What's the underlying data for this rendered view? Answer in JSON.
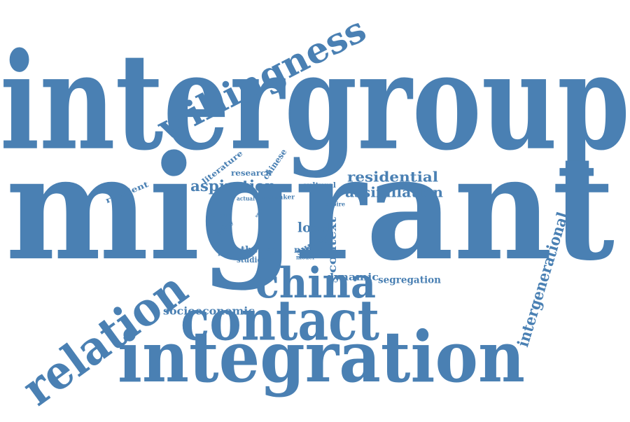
{
  "word_cloud": {
    "color": "#4a80b3",
    "background": "#ffffff",
    "words": [
      {
        "id": "intergroup",
        "text": "intergroup",
        "orientation": "horizontal"
      },
      {
        "id": "migrant",
        "text": "migrant",
        "orientation": "horizontal"
      },
      {
        "id": "integration",
        "text": "integration",
        "orientation": "horizontal"
      },
      {
        "id": "contact",
        "text": "contact",
        "orientation": "horizontal"
      },
      {
        "id": "china",
        "text": "china",
        "orientation": "horizontal"
      },
      {
        "id": "relation",
        "text": "relation",
        "orientation": "angled"
      },
      {
        "id": "willingness",
        "text": "willingness",
        "orientation": "angled"
      },
      {
        "id": "intergenerational",
        "text": "intergenerational",
        "orientation": "angled"
      },
      {
        "id": "residential",
        "text": "residential",
        "orientation": "horizontal"
      },
      {
        "id": "assimilation",
        "text": "assimilation",
        "orientation": "horizontal"
      },
      {
        "id": "aspiration",
        "text": "aspiration",
        "orientation": "horizontal"
      },
      {
        "id": "socioeconomic",
        "text": "socioeconomic",
        "orientation": "horizontal"
      },
      {
        "id": "segregation",
        "text": "segregation",
        "orientation": "horizontal"
      },
      {
        "id": "dynamic",
        "text": "dynamic",
        "orientation": "horizontal"
      },
      {
        "id": "local",
        "text": "local",
        "orientation": "horizontal"
      },
      {
        "id": "context",
        "text": "context",
        "orientation": "vertical"
      },
      {
        "id": "urban",
        "text": "urban",
        "orientation": "vertical"
      },
      {
        "id": "chinese",
        "text": "chinese",
        "orientation": "angled"
      },
      {
        "id": "literature",
        "text": "literature",
        "orientation": "angled"
      },
      {
        "id": "resident",
        "text": "resident",
        "orientation": "angled"
      },
      {
        "id": "contribute",
        "text": "contribute",
        "orientation": "vertical"
      },
      {
        "id": "research",
        "text": "research",
        "orientation": "horizontal"
      },
      {
        "id": "cultural",
        "text": "cultural",
        "orientation": "horizontal"
      },
      {
        "id": "survey",
        "text": "survey",
        "orientation": "angled"
      },
      {
        "id": "native",
        "text": "native",
        "orientation": "horizontal"
      },
      {
        "id": "theory",
        "text": "theory",
        "orientation": "horizontal"
      },
      {
        "id": "studies",
        "text": "studies",
        "orientation": "horizontal"
      },
      {
        "id": "finding",
        "text": "finding",
        "orientation": "horizontal"
      },
      {
        "id": "model",
        "text": "model",
        "orientation": "horizontal"
      },
      {
        "id": "thesis",
        "text": "thesis",
        "orientation": "horizontal"
      },
      {
        "id": "policy",
        "text": "policy",
        "orientation": "angled"
      },
      {
        "id": "actual",
        "text": "actual",
        "orientation": "horizontal"
      },
      {
        "id": "draw",
        "text": "draw",
        "orientation": "horizontal"
      },
      {
        "id": "maker",
        "text": "maker",
        "orientation": "horizontal"
      },
      {
        "id": "aspire",
        "text": "aspire",
        "orientation": "horizontal"
      },
      {
        "id": "need",
        "text": "need",
        "orientation": "angled"
      }
    ]
  }
}
